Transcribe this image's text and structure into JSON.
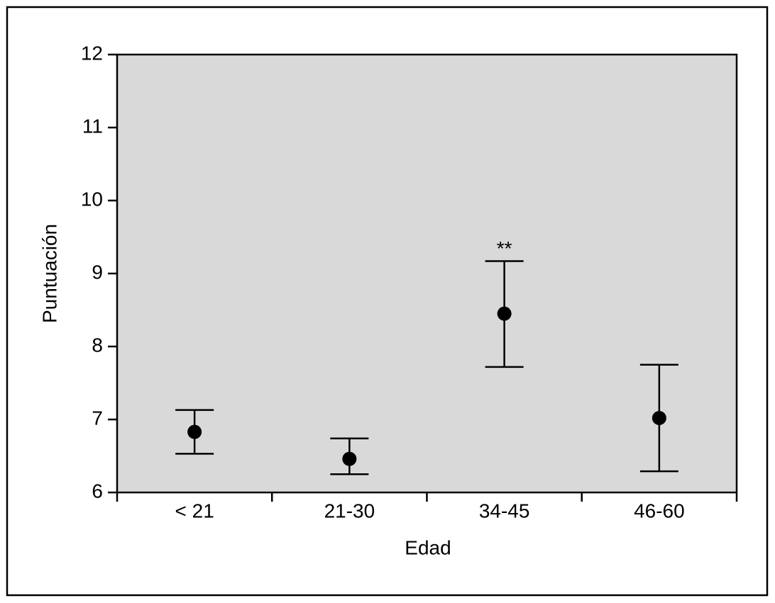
{
  "chart_data": {
    "type": "errorbar",
    "x_label": "Edad",
    "y_label": "Puntuación",
    "categories": [
      "< 21",
      "21-30",
      "34-45",
      "46-60"
    ],
    "values": [
      6.83,
      6.46,
      8.45,
      7.02
    ],
    "lower": [
      6.53,
      6.25,
      7.72,
      6.29
    ],
    "upper": [
      7.13,
      6.74,
      9.17,
      7.75
    ],
    "color": "#000000",
    "background": "#d9d9d9",
    "ylim": [
      6,
      12
    ],
    "yticks": [
      6,
      7,
      8,
      9,
      10,
      11,
      12
    ],
    "annotations": [
      {
        "text": "**",
        "x": "34-45"
      }
    ]
  }
}
